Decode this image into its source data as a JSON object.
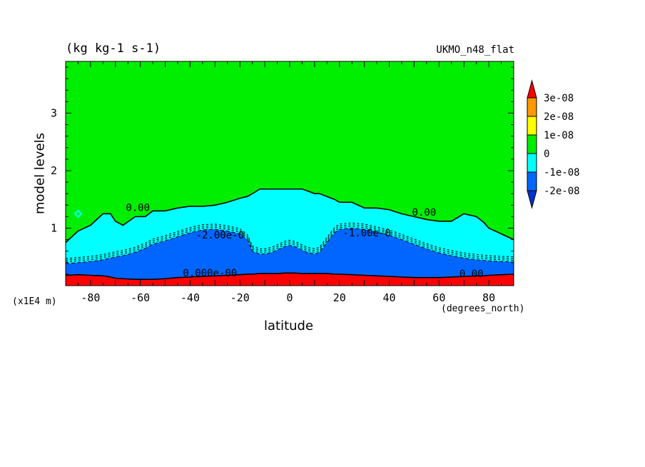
{
  "chart_data": {
    "type": "heatmap",
    "title_left": "(kg kg-1 s-1)",
    "title_right": "UKMO_n48_flat",
    "xlabel": "latitude",
    "x_units": "(degrees_north)",
    "ylabel": "model levels",
    "y_scale_note": "(x1E4 m)",
    "xlim": [
      -90,
      90
    ],
    "ylim": [
      0,
      3.9
    ],
    "x_ticks": [
      -80,
      -60,
      -40,
      -20,
      0,
      20,
      40,
      60,
      80
    ],
    "y_ticks": [
      1,
      2,
      3
    ],
    "x_tick_labels": [
      "-80",
      "-60",
      "-40",
      "-20",
      "0",
      "20",
      "40",
      "60",
      "80"
    ],
    "y_tick_labels": [
      "1",
      "2",
      "3"
    ],
    "colorbar": {
      "labels": [
        "3e-08",
        "2e-08",
        "1e-08",
        "0",
        "-1e-08",
        "-2e-08"
      ],
      "colors": [
        "#ff0000",
        "#ff9900",
        "#ffff00",
        "#00ee00",
        "#00ffff",
        "#0066ff",
        "#0033cc"
      ]
    },
    "regions": {
      "lat": [
        -90,
        -85,
        -80,
        -75,
        -72,
        -70,
        -67,
        -62,
        -58,
        -55,
        -50,
        -45,
        -40,
        -35,
        -30,
        -25,
        -20,
        -17,
        -15,
        -12,
        -10,
        -7,
        -5,
        -2,
        0,
        2,
        5,
        7,
        10,
        12,
        15,
        18,
        20,
        25,
        30,
        35,
        40,
        45,
        50,
        55,
        60,
        65,
        70,
        75,
        78,
        80,
        85,
        90
      ],
      "zero_contour_top": [
        0.75,
        0.95,
        1.05,
        1.25,
        1.25,
        1.12,
        1.05,
        1.2,
        1.2,
        1.3,
        1.3,
        1.35,
        1.38,
        1.38,
        1.4,
        1.45,
        1.52,
        1.55,
        1.6,
        1.68,
        1.68,
        1.68,
        1.68,
        1.68,
        1.68,
        1.68,
        1.68,
        1.65,
        1.6,
        1.6,
        1.55,
        1.5,
        1.45,
        1.45,
        1.35,
        1.35,
        1.32,
        1.25,
        1.2,
        1.15,
        1.12,
        1.12,
        1.25,
        1.2,
        1.1,
        1.0,
        0.9,
        0.8
      ],
      "neg1e8_top": [
        0.38,
        0.4,
        0.42,
        0.45,
        0.48,
        0.5,
        0.52,
        0.58,
        0.65,
        0.72,
        0.78,
        0.85,
        0.92,
        0.97,
        0.98,
        0.95,
        0.9,
        0.8,
        0.6,
        0.55,
        0.55,
        0.58,
        0.62,
        0.68,
        0.7,
        0.68,
        0.62,
        0.58,
        0.55,
        0.58,
        0.75,
        0.92,
        0.98,
        1.0,
        0.98,
        0.93,
        0.88,
        0.8,
        0.72,
        0.64,
        0.57,
        0.52,
        0.48,
        0.45,
        0.44,
        0.43,
        0.42,
        0.41
      ],
      "positive_top": [
        0.18,
        0.19,
        0.18,
        0.17,
        0.15,
        0.13,
        0.12,
        0.11,
        0.11,
        0.11,
        0.12,
        0.14,
        0.15,
        0.16,
        0.17,
        0.18,
        0.19,
        0.2,
        0.2,
        0.21,
        0.21,
        0.21,
        0.21,
        0.22,
        0.22,
        0.22,
        0.21,
        0.21,
        0.21,
        0.21,
        0.21,
        0.2,
        0.2,
        0.19,
        0.18,
        0.17,
        0.16,
        0.15,
        0.14,
        0.14,
        0.14,
        0.15,
        0.16,
        0.17,
        0.17,
        0.18,
        0.19,
        0.2
      ],
      "green_island": {
        "lat": -85,
        "level": 1.25
      }
    },
    "contour_labels": [
      {
        "text": "0.00",
        "lat": -61,
        "level": 1.3
      },
      {
        "text": "0.00",
        "lat": 54,
        "level": 1.22
      },
      {
        "text": "-2.00e-0",
        "lat": -28,
        "level": 0.82
      },
      {
        "text": "-1.00e-0",
        "lat": 31,
        "level": 0.86
      },
      {
        "text": "0.00",
        "lat": 73,
        "level": 0.15
      },
      {
        "text": "0.000e-00",
        "lat": -32,
        "level": 0.16
      }
    ]
  },
  "styles": {
    "green": "#00ee00",
    "cyan": "#00ffff",
    "blue": "#0066ff",
    "red": "#ff0000",
    "contour": "#000000",
    "axis": "#000000"
  }
}
